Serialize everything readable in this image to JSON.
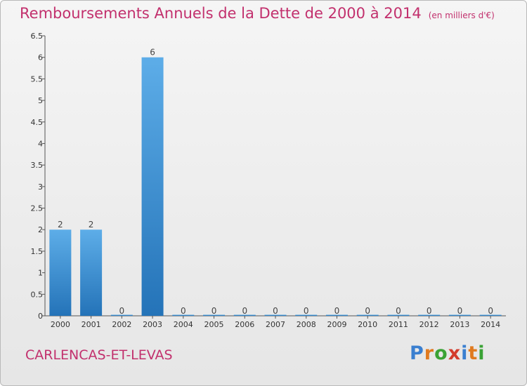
{
  "header": {
    "title": "Remboursements Annuels de la Dette de 2000 à 2014",
    "unit": "(en milliers d'€)"
  },
  "footer": {
    "commune": "CARLENCAS-ET-LEVAS",
    "brand": "Proxiti",
    "brand_colors": [
      "#3a7fd0",
      "#e07a1f",
      "#3aa235",
      "#d33b2c",
      "#3a7fd0",
      "#e07a1f",
      "#3aa235"
    ]
  },
  "chart_data": {
    "type": "bar",
    "title": "Remboursements Annuels de la Dette de 2000 à 2014",
    "subtitle": "(en milliers d'€)",
    "xlabel": "",
    "ylabel": "",
    "categories": [
      "2000",
      "2001",
      "2002",
      "2003",
      "2004",
      "2005",
      "2006",
      "2007",
      "2008",
      "2009",
      "2010",
      "2011",
      "2012",
      "2013",
      "2014"
    ],
    "values": [
      2,
      2,
      0,
      6,
      0,
      0,
      0,
      0,
      0,
      0,
      0,
      0,
      0,
      0,
      0
    ],
    "data_labels": [
      "2",
      "2",
      "0",
      "6",
      "0",
      "0",
      "0",
      "0",
      "0",
      "0",
      "0",
      "0",
      "0",
      "0",
      "0"
    ],
    "ylim": [
      0,
      6.5
    ],
    "yticks": [
      0,
      0.5,
      1,
      1.5,
      2,
      2.5,
      3,
      3.5,
      4,
      4.5,
      5,
      5.5,
      6,
      6.5
    ],
    "ytick_labels": [
      "0",
      "0.5",
      "1",
      "1.5",
      "2",
      "2.5",
      "3",
      "3.5",
      "4",
      "4.5",
      "5",
      "5.5",
      "6",
      "6.5"
    ],
    "grid": false,
    "legend": "none",
    "colors": {
      "bar_top": "#5dade8",
      "bar_bottom": "#2473b8",
      "axis": "#555555"
    }
  }
}
